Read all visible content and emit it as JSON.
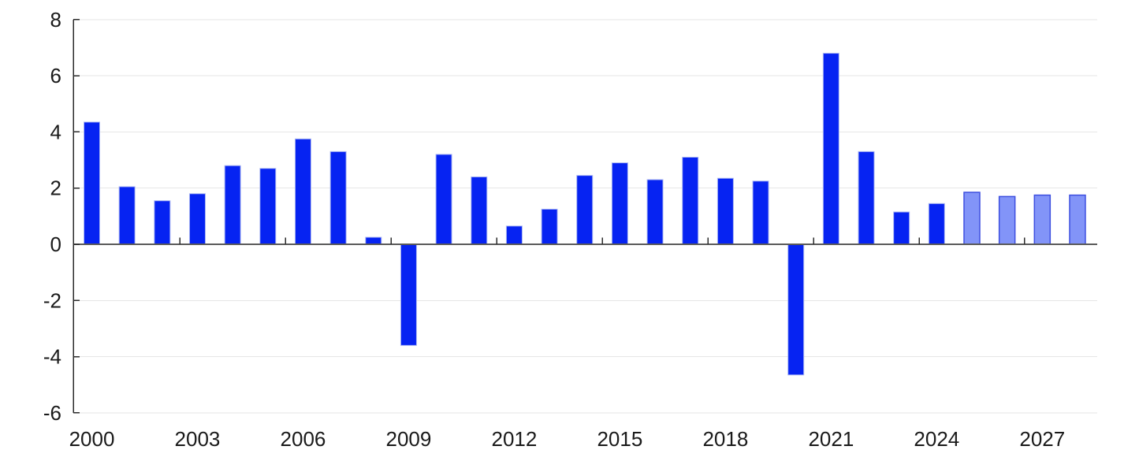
{
  "chart_data": {
    "type": "bar",
    "title": "",
    "categories": [
      "2000",
      "2001",
      "2002",
      "2003",
      "2004",
      "2005",
      "2006",
      "2007",
      "2008",
      "2009",
      "2010",
      "2011",
      "2012",
      "2013",
      "2014",
      "2015",
      "2016",
      "2017",
      "2018",
      "2019",
      "2020",
      "2021",
      "2022",
      "2023",
      "2024",
      "2025",
      "2026",
      "2027",
      "2028"
    ],
    "values": [
      4.35,
      2.05,
      1.55,
      1.8,
      2.8,
      2.7,
      3.75,
      3.3,
      0.25,
      -3.6,
      3.2,
      2.4,
      0.65,
      1.25,
      2.45,
      2.9,
      2.3,
      3.1,
      2.35,
      2.25,
      -4.65,
      6.8,
      3.3,
      1.15,
      1.45,
      1.85,
      1.7,
      1.75,
      1.75
    ],
    "forecast_from_year": 2025,
    "xlabel": "",
    "ylabel": "",
    "ylim": [
      -6,
      8
    ],
    "ytick_step": 2,
    "ytick_labels": [
      "8",
      "6",
      "4",
      "2",
      "0",
      "-2",
      "-4",
      "-6"
    ],
    "xtick_labels": [
      "2000",
      "2003",
      "2006",
      "2009",
      "2012",
      "2015",
      "2018",
      "2021",
      "2024",
      "2027"
    ],
    "xtick_label_interval": 3,
    "grid": true,
    "legend_position": "none"
  },
  "colors": {
    "actual_bar_fill": "#0623f2",
    "actual_bar_stroke": "#aab6f2",
    "forecast_bar_fill": "#8294f8",
    "forecast_bar_stroke": "#3d4fe0",
    "gridline": "#e6e6e6",
    "zero_line": "#5a5a5a",
    "axis_line": "#2b2b2b",
    "tick": "#2b2b2b",
    "text": "#1a1a1a",
    "background": "#ffffff"
  }
}
